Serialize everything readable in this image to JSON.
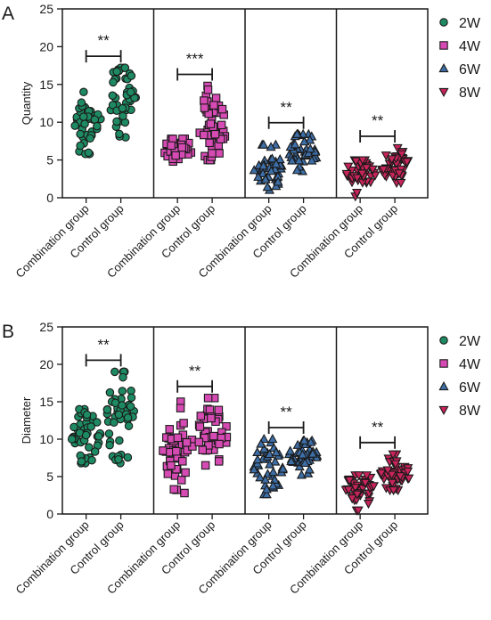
{
  "chart_data": [
    {
      "panel_label": "A",
      "type": "scatter",
      "ylabel": "Quantity",
      "ylim": [
        0,
        25
      ],
      "yticks": [
        0,
        5,
        10,
        15,
        20,
        25
      ],
      "categories": [
        "Combination group",
        "Control group"
      ],
      "groups": [
        {
          "name": "2W",
          "marker": "circle",
          "color": "#1e8a63",
          "combination": {
            "mean": 9.6,
            "min": 5.8,
            "max": 14.0
          },
          "control": {
            "mean": 13.4,
            "min": 8.0,
            "max": 17.2
          },
          "significance": "**"
        },
        {
          "name": "4W",
          "marker": "square",
          "color": "#d64ab3",
          "combination": {
            "mean": 6.4,
            "min": 4.8,
            "max": 7.8
          },
          "control": {
            "mean": 8.8,
            "min": 5.0,
            "max": 14.8
          },
          "significance": "***"
        },
        {
          "name": "6W",
          "marker": "triangle-up",
          "color": "#3d6ea6",
          "combination": {
            "mean": 4.0,
            "min": 1.0,
            "max": 7.0
          },
          "control": {
            "mean": 6.1,
            "min": 3.5,
            "max": 8.4
          },
          "significance": "**"
        },
        {
          "name": "8W",
          "marker": "triangle-down",
          "color": "#c8245a",
          "combination": {
            "mean": 3.0,
            "min": 0.2,
            "max": 5.0
          },
          "control": {
            "mean": 4.2,
            "min": 2.0,
            "max": 6.6
          },
          "significance": "**"
        }
      ]
    },
    {
      "panel_label": "B",
      "type": "scatter",
      "ylabel": "Diameter",
      "ylim": [
        0,
        25
      ],
      "yticks": [
        0,
        5,
        10,
        15,
        20,
        25
      ],
      "categories": [
        "Combination group",
        "Control group"
      ],
      "groups": [
        {
          "name": "2W",
          "marker": "circle",
          "color": "#1e8a63",
          "combination": {
            "mean": 10.8,
            "min": 6.8,
            "max": 14.0
          },
          "control": {
            "mean": 12.6,
            "min": 6.8,
            "max": 19.0
          },
          "significance": "**"
        },
        {
          "name": "4W",
          "marker": "square",
          "color": "#d64ab3",
          "combination": {
            "mean": 8.6,
            "min": 2.8,
            "max": 15.0
          },
          "control": {
            "mean": 10.6,
            "min": 6.5,
            "max": 15.5
          },
          "significance": "**"
        },
        {
          "name": "6W",
          "marker": "triangle-up",
          "color": "#3d6ea6",
          "combination": {
            "mean": 6.2,
            "min": 2.6,
            "max": 10.0
          },
          "control": {
            "mean": 8.0,
            "min": 5.2,
            "max": 9.8
          },
          "significance": "**"
        },
        {
          "name": "8W",
          "marker": "triangle-down",
          "color": "#c8245a",
          "combination": {
            "mean": 3.4,
            "min": 0.5,
            "max": 5.2
          },
          "control": {
            "mean": 5.4,
            "min": 3.2,
            "max": 8.0
          },
          "significance": "**"
        }
      ]
    }
  ],
  "legend": [
    {
      "label": "2W",
      "marker": "circle",
      "color": "#1e8a63"
    },
    {
      "label": "4W",
      "marker": "square",
      "color": "#d64ab3"
    },
    {
      "label": "6W",
      "marker": "triangle-up",
      "color": "#3d6ea6"
    },
    {
      "label": "8W",
      "marker": "triangle-down",
      "color": "#c8245a"
    }
  ],
  "points_per_group": 45
}
